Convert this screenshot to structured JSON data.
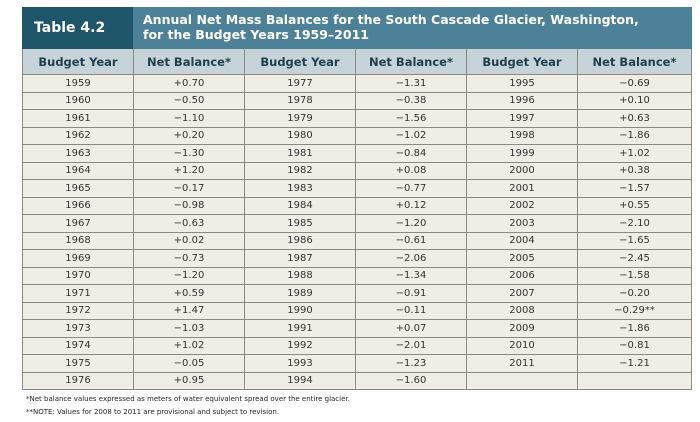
{
  "table": {
    "number": "Table 4.2",
    "title_line1": "Annual Net Mass Balances for the South Cascade Glacier, Washington,",
    "title_line2": "for the Budget Years 1959–2011",
    "headers": [
      "Budget Year",
      "Net Balance*",
      "Budget Year",
      "Net Balance*",
      "Budget Year",
      "Net Balance*"
    ],
    "groups": [
      {
        "years": [
          "1959",
          "1960",
          "1961",
          "1962",
          "1963",
          "1964",
          "1965",
          "1966",
          "1967",
          "1968",
          "1969",
          "1970",
          "1971",
          "1972",
          "1973",
          "1974",
          "1975",
          "1976"
        ],
        "values": [
          "+0.70",
          "−0.50",
          "−1.10",
          "+0.20",
          "−1.30",
          "+1.20",
          "−0.17",
          "−0.98",
          "−0.63",
          "+0.02",
          "−0.73",
          "−1.20",
          "+0.59",
          "+1.47",
          "−1.03",
          "+1.02",
          "−0.05",
          "+0.95"
        ]
      },
      {
        "years": [
          "1977",
          "1978",
          "1979",
          "1980",
          "1981",
          "1982",
          "1983",
          "1984",
          "1985",
          "1986",
          "1987",
          "1988",
          "1989",
          "1990",
          "1991",
          "1992",
          "1993",
          "1994"
        ],
        "values": [
          "−1.31",
          "−0.38",
          "−1.56",
          "−1.02",
          "−0.84",
          "+0.08",
          "−0.77",
          "+0.12",
          "−1.20",
          "−0.61",
          "−2.06",
          "−1.34",
          "−0.91",
          "−0.11",
          "+0.07",
          "−2.01",
          "−1.23",
          "−1.60"
        ]
      },
      {
        "years": [
          "1995",
          "1996",
          "1997",
          "1998",
          "1999",
          "2000",
          "2001",
          "2002",
          "2003",
          "2004",
          "2005",
          "2006",
          "2007",
          "2008",
          "2009",
          "2010",
          "2011",
          ""
        ],
        "values": [
          "−0.69",
          "+0.10",
          "+0.63",
          "−1.86",
          "+1.02",
          "+0.38",
          "−1.57",
          "+0.55",
          "−2.10",
          "−1.65",
          "−2.45",
          "−1.58",
          "−0.20",
          "−0.29**",
          "−1.86",
          "−0.81",
          "−1.21",
          ""
        ]
      }
    ]
  },
  "footnotes": [
    "*Net balance values expressed as meters of water equivalent spread over the entire glacier.",
    "**NOTE: Values for 2008 to 2011 are provisional and subject to revision."
  ]
}
